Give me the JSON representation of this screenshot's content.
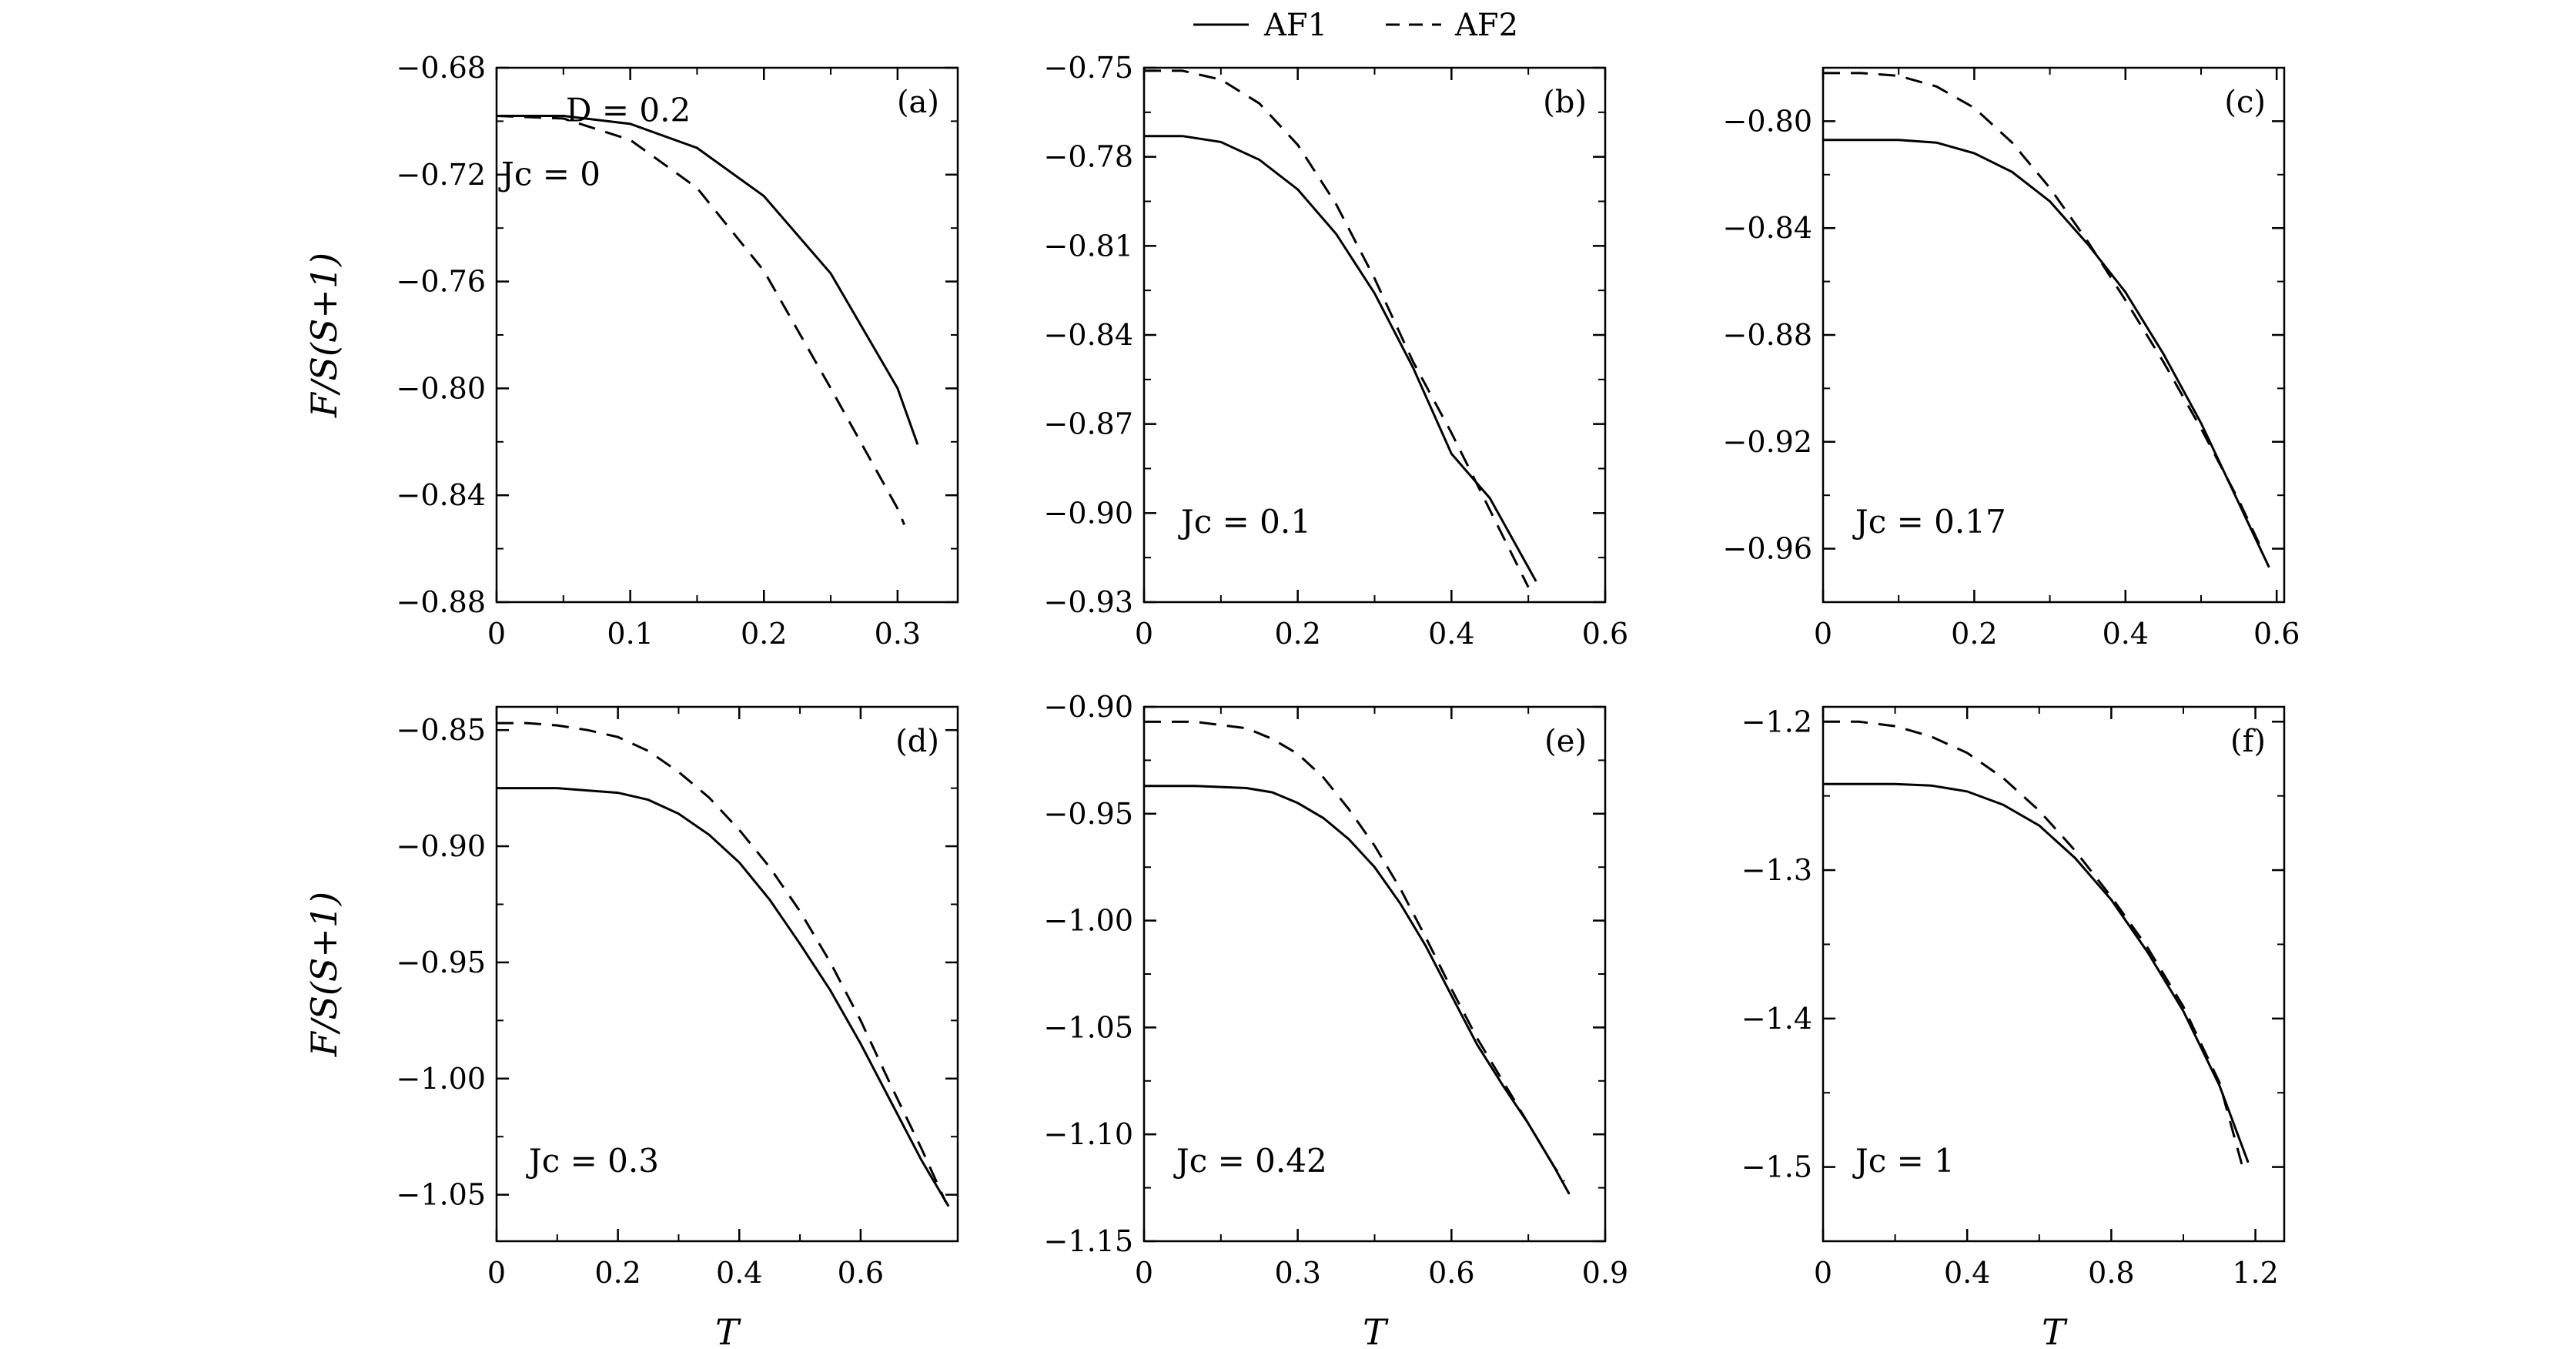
{
  "legend": {
    "af1_label": "AF1",
    "af2_label": "AF2"
  },
  "chart_data": [
    {
      "type": "line",
      "panel": "(a)",
      "xlabel": "",
      "ylabel": "F/S(S+1)",
      "xlim": [
        0,
        0.345
      ],
      "ylim": [
        -0.88,
        -0.68
      ],
      "xticks": [
        0,
        0.1,
        0.2,
        0.3
      ],
      "xticklabels": [
        "0",
        "0.1",
        "0.2",
        "0.3"
      ],
      "yticks": [
        -0.68,
        -0.72,
        -0.76,
        -0.8,
        -0.84,
        -0.88
      ],
      "yticklabels": [
        "−0.68",
        "−0.72",
        "−0.76",
        "−0.80",
        "−0.84",
        "−0.88"
      ],
      "annotations": [
        "D = 0.2",
        "Jc = 0"
      ],
      "series": [
        {
          "name": "AF1",
          "style": "solid",
          "x": [
            0,
            0.05,
            0.1,
            0.15,
            0.2,
            0.25,
            0.3,
            0.315
          ],
          "y": [
            -0.698,
            -0.698,
            -0.701,
            -0.71,
            -0.728,
            -0.757,
            -0.8,
            -0.821
          ]
        },
        {
          "name": "AF2",
          "style": "dashed",
          "x": [
            0,
            0.05,
            0.1,
            0.15,
            0.2,
            0.25,
            0.3,
            0.305
          ],
          "y": [
            -0.698,
            -0.699,
            -0.707,
            -0.725,
            -0.756,
            -0.8,
            -0.845,
            -0.851
          ]
        }
      ]
    },
    {
      "type": "line",
      "panel": "(b)",
      "xlabel": "",
      "ylabel": "",
      "xlim": [
        0,
        0.6
      ],
      "ylim": [
        -0.93,
        -0.75
      ],
      "xticks": [
        0,
        0.2,
        0.4,
        0.6
      ],
      "xticklabels": [
        "0",
        "0.2",
        "0.4",
        "0.6"
      ],
      "yticks": [
        -0.75,
        -0.78,
        -0.81,
        -0.84,
        -0.87,
        -0.9,
        -0.93
      ],
      "yticklabels": [
        "−0.75",
        "−0.78",
        "−0.81",
        "−0.84",
        "−0.87",
        "−0.90",
        "−0.93"
      ],
      "annotations": [
        "Jc = 0.1"
      ],
      "series": [
        {
          "name": "AF1",
          "style": "solid",
          "x": [
            0,
            0.05,
            0.1,
            0.15,
            0.2,
            0.25,
            0.3,
            0.35,
            0.4,
            0.45,
            0.51
          ],
          "y": [
            -0.773,
            -0.773,
            -0.775,
            -0.781,
            -0.791,
            -0.806,
            -0.826,
            -0.851,
            -0.88,
            -0.895,
            -0.923
          ]
        },
        {
          "name": "AF2",
          "style": "dashed",
          "x": [
            0,
            0.05,
            0.1,
            0.15,
            0.2,
            0.25,
            0.3,
            0.35,
            0.4,
            0.45,
            0.5
          ],
          "y": [
            -0.751,
            -0.751,
            -0.754,
            -0.762,
            -0.776,
            -0.796,
            -0.821,
            -0.849,
            -0.873,
            -0.899,
            -0.925
          ]
        }
      ]
    },
    {
      "type": "line",
      "panel": "(c)",
      "xlabel": "",
      "ylabel": "",
      "xlim": [
        0,
        0.61
      ],
      "ylim": [
        -0.98,
        -0.78
      ],
      "xticks": [
        0,
        0.2,
        0.4,
        0.6
      ],
      "xticklabels": [
        "0",
        "0.2",
        "0.4",
        "0.6"
      ],
      "yticks": [
        -0.8,
        -0.84,
        -0.88,
        -0.92,
        -0.96
      ],
      "yticklabels": [
        "−0.80",
        "−0.84",
        "−0.88",
        "−0.92",
        "−0.96"
      ],
      "annotations": [
        "Jc = 0.17"
      ],
      "series": [
        {
          "name": "AF1",
          "style": "solid",
          "x": [
            0,
            0.05,
            0.1,
            0.15,
            0.2,
            0.25,
            0.3,
            0.35,
            0.4,
            0.45,
            0.5,
            0.55,
            0.59
          ],
          "y": [
            -0.807,
            -0.807,
            -0.807,
            -0.808,
            -0.812,
            -0.819,
            -0.83,
            -0.846,
            -0.864,
            -0.887,
            -0.913,
            -0.943,
            -0.967
          ]
        },
        {
          "name": "AF2",
          "style": "dashed",
          "x": [
            0,
            0.05,
            0.1,
            0.15,
            0.2,
            0.25,
            0.3,
            0.35,
            0.4,
            0.45,
            0.5,
            0.55,
            0.58
          ],
          "y": [
            -0.782,
            -0.782,
            -0.783,
            -0.787,
            -0.795,
            -0.808,
            -0.825,
            -0.845,
            -0.867,
            -0.89,
            -0.915,
            -0.942,
            -0.96
          ]
        }
      ]
    },
    {
      "type": "line",
      "panel": "(d)",
      "xlabel": "T",
      "ylabel": "F/S(S+1)",
      "xlim": [
        0,
        0.76
      ],
      "ylim": [
        -1.07,
        -0.84
      ],
      "xticks": [
        0,
        0.2,
        0.4,
        0.6
      ],
      "xticklabels": [
        "0",
        "0.2",
        "0.4",
        "0.6"
      ],
      "yticks": [
        -0.85,
        -0.9,
        -0.95,
        -1.0,
        -1.05
      ],
      "yticklabels": [
        "−0.85",
        "−0.90",
        "−0.95",
        "−1.00",
        "−1.05"
      ],
      "annotations": [
        "Jc = 0.3"
      ],
      "series": [
        {
          "name": "AF1",
          "style": "solid",
          "x": [
            0,
            0.05,
            0.1,
            0.15,
            0.2,
            0.25,
            0.3,
            0.35,
            0.4,
            0.45,
            0.5,
            0.55,
            0.6,
            0.65,
            0.7,
            0.745
          ],
          "y": [
            -0.875,
            -0.875,
            -0.875,
            -0.876,
            -0.877,
            -0.88,
            -0.886,
            -0.895,
            -0.907,
            -0.923,
            -0.942,
            -0.962,
            -0.985,
            -1.01,
            -1.035,
            -1.055
          ]
        },
        {
          "name": "AF2",
          "style": "dashed",
          "x": [
            0,
            0.05,
            0.1,
            0.15,
            0.2,
            0.25,
            0.3,
            0.35,
            0.4,
            0.45,
            0.5,
            0.55,
            0.6,
            0.65,
            0.7,
            0.74
          ],
          "y": [
            -0.847,
            -0.847,
            -0.848,
            -0.85,
            -0.853,
            -0.859,
            -0.868,
            -0.879,
            -0.893,
            -0.909,
            -0.928,
            -0.95,
            -0.975,
            -1.003,
            -1.03,
            -1.053
          ]
        }
      ]
    },
    {
      "type": "line",
      "panel": "(e)",
      "xlabel": "T",
      "ylabel": "",
      "xlim": [
        0,
        0.9
      ],
      "ylim": [
        -1.15,
        -0.9
      ],
      "xticks": [
        0,
        0.3,
        0.6,
        0.9
      ],
      "xticklabels": [
        "0",
        "0.3",
        "0.6",
        "0.9"
      ],
      "yticks": [
        -0.9,
        -0.95,
        -1.0,
        -1.05,
        -1.1,
        -1.15
      ],
      "yticklabels": [
        "−0.90",
        "−0.95",
        "−1.00",
        "−1.05",
        "−1.10",
        "−1.15"
      ],
      "annotations": [
        "Jc = 0.42"
      ],
      "series": [
        {
          "name": "AF1",
          "style": "solid",
          "x": [
            0,
            0.1,
            0.2,
            0.25,
            0.3,
            0.35,
            0.4,
            0.45,
            0.5,
            0.55,
            0.6,
            0.65,
            0.7,
            0.75,
            0.8,
            0.83
          ],
          "y": [
            -0.937,
            -0.937,
            -0.938,
            -0.94,
            -0.945,
            -0.952,
            -0.962,
            -0.975,
            -0.992,
            -1.012,
            -1.035,
            -1.058,
            -1.077,
            -1.095,
            -1.115,
            -1.128
          ]
        },
        {
          "name": "AF2",
          "style": "dashed",
          "x": [
            0,
            0.1,
            0.2,
            0.25,
            0.3,
            0.35,
            0.4,
            0.45,
            0.5,
            0.55,
            0.6,
            0.65,
            0.7,
            0.75,
            0.8,
            0.82
          ],
          "y": [
            -0.907,
            -0.907,
            -0.91,
            -0.915,
            -0.922,
            -0.933,
            -0.948,
            -0.965,
            -0.985,
            -1.008,
            -1.032,
            -1.055,
            -1.075,
            -1.095,
            -1.115,
            -1.122
          ]
        }
      ]
    },
    {
      "type": "line",
      "panel": "(f)",
      "xlabel": "T",
      "ylabel": "",
      "xlim": [
        0,
        1.28
      ],
      "ylim": [
        -1.55,
        -1.19
      ],
      "xticks": [
        0,
        0.4,
        0.8,
        1.2
      ],
      "xticklabels": [
        "0",
        "0.4",
        "0.8",
        "1.2"
      ],
      "yticks": [
        -1.2,
        -1.3,
        -1.4,
        -1.5
      ],
      "yticklabels": [
        "−1.2",
        "−1.3",
        "−1.4",
        "−1.5"
      ],
      "annotations": [
        "Jc = 1"
      ],
      "series": [
        {
          "name": "AF1",
          "style": "solid",
          "x": [
            0,
            0.1,
            0.2,
            0.3,
            0.4,
            0.5,
            0.6,
            0.7,
            0.8,
            0.9,
            1.0,
            1.1,
            1.18
          ],
          "y": [
            -1.242,
            -1.242,
            -1.242,
            -1.243,
            -1.247,
            -1.256,
            -1.27,
            -1.292,
            -1.32,
            -1.355,
            -1.395,
            -1.445,
            -1.497
          ]
        },
        {
          "name": "AF2",
          "style": "dashed",
          "x": [
            0,
            0.1,
            0.2,
            0.3,
            0.4,
            0.5,
            0.6,
            0.7,
            0.8,
            0.9,
            1.0,
            1.1,
            1.17
          ],
          "y": [
            -1.2,
            -1.2,
            -1.203,
            -1.21,
            -1.221,
            -1.238,
            -1.26,
            -1.287,
            -1.318,
            -1.352,
            -1.392,
            -1.443,
            -1.505
          ]
        }
      ]
    }
  ]
}
